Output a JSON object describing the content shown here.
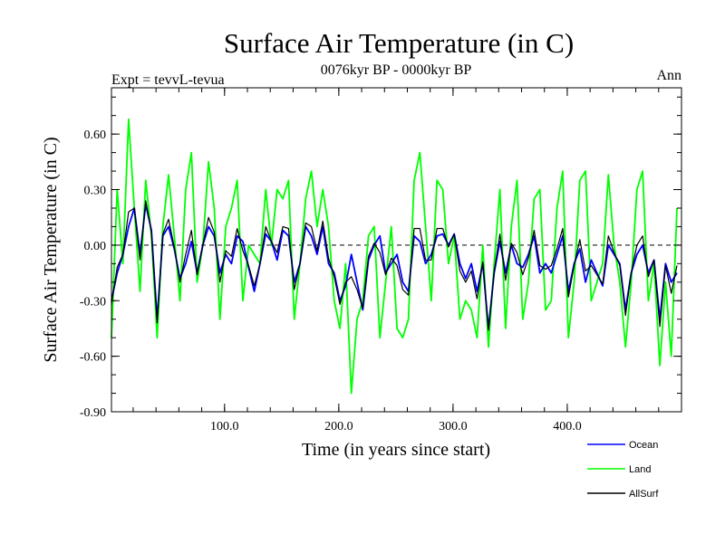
{
  "chart_data": {
    "type": "line",
    "title": "Surface Air Temperature (in C)",
    "subtitle": "0076kyr BP - 0000kyr BP",
    "left_label": "Expt = tevvL-tevua",
    "right_label": "Ann",
    "xlabel": "Time (in years since start)",
    "ylabel": "Surface Air Temperature (in C)",
    "xlim": [
      1,
      500
    ],
    "ylim": [
      -0.9,
      0.85
    ],
    "x_ticks": [
      100,
      200,
      300,
      400
    ],
    "x_tick_labels": [
      "100.0",
      "200.0",
      "300.0",
      "400.0"
    ],
    "y_ticks": [
      -0.9,
      -0.6,
      -0.3,
      0.0,
      0.3,
      0.6
    ],
    "y_tick_labels": [
      "-0.90",
      "-0.60",
      "-0.30",
      "0.00",
      "0.30",
      "0.60"
    ],
    "zero_line": true,
    "legend_position": "bottom-right",
    "series": [
      {
        "name": "Ocean",
        "color": "#0000ff",
        "x_start": 1,
        "x_step": 5,
        "values": [
          -0.3,
          -0.15,
          -0.05,
          0.1,
          0.2,
          -0.05,
          0.22,
          0.08,
          -0.4,
          0.05,
          0.1,
          -0.02,
          -0.18,
          -0.1,
          0.02,
          -0.15,
          0.0,
          0.1,
          0.05,
          -0.15,
          -0.05,
          -0.1,
          0.05,
          0.02,
          -0.12,
          -0.25,
          -0.1,
          0.06,
          0.02,
          -0.08,
          0.08,
          0.05,
          -0.2,
          -0.1,
          0.1,
          0.05,
          -0.05,
          0.1,
          -0.1,
          -0.15,
          -0.3,
          -0.22,
          -0.05,
          -0.2,
          -0.35,
          -0.08,
          0.0,
          0.05,
          -0.15,
          -0.1,
          -0.05,
          -0.2,
          -0.25,
          0.05,
          0.02,
          -0.1,
          -0.05,
          0.05,
          0.06,
          0.0,
          0.06,
          -0.1,
          -0.18,
          -0.1,
          -0.25,
          -0.1,
          -0.45,
          -0.15,
          0.02,
          -0.15,
          0.0,
          -0.1,
          -0.12,
          -0.05,
          0.05,
          -0.15,
          -0.1,
          -0.15,
          -0.05,
          0.05,
          -0.25,
          -0.1,
          -0.02,
          -0.2,
          -0.08,
          -0.15,
          -0.22,
          0.0,
          -0.05,
          -0.1,
          -0.35,
          -0.15,
          -0.05,
          0.0,
          -0.15,
          -0.08,
          -0.4,
          -0.1,
          -0.2,
          -0.15
        ]
      },
      {
        "name": "Land",
        "color": "#00ff00",
        "x_start": 1,
        "x_step": 5,
        "values": [
          -0.5,
          0.3,
          -0.1,
          0.68,
          0.2,
          -0.25,
          0.35,
          0.05,
          -0.5,
          0.1,
          0.38,
          0.05,
          -0.3,
          0.3,
          0.5,
          -0.2,
          0.0,
          0.45,
          0.2,
          -0.4,
          0.1,
          0.2,
          0.35,
          -0.3,
          0.0,
          -0.05,
          -0.1,
          0.3,
          0.0,
          0.3,
          0.25,
          0.35,
          -0.4,
          -0.1,
          0.25,
          0.4,
          0.1,
          0.3,
          0.1,
          -0.3,
          -0.45,
          -0.1,
          -0.8,
          -0.4,
          -0.3,
          0.05,
          0.1,
          -0.5,
          -0.2,
          0.1,
          -0.45,
          -0.5,
          -0.4,
          0.35,
          0.5,
          0.1,
          -0.3,
          0.35,
          0.3,
          -0.1,
          0.05,
          -0.4,
          -0.3,
          -0.35,
          -0.5,
          0.0,
          -0.55,
          -0.1,
          0.3,
          -0.45,
          0.1,
          0.35,
          -0.4,
          -0.2,
          0.25,
          0.3,
          -0.35,
          -0.3,
          0.2,
          0.4,
          -0.5,
          -0.2,
          0.35,
          0.4,
          -0.3,
          -0.2,
          -0.1,
          0.38,
          0.0,
          -0.2,
          -0.55,
          -0.2,
          0.3,
          0.4,
          -0.3,
          -0.1,
          -0.65,
          -0.2,
          -0.6,
          0.2
        ]
      },
      {
        "name": "AllSurf",
        "color": "#000000",
        "x_start": 1,
        "x_step": 5,
        "values": [
          -0.32,
          -0.12,
          -0.05,
          0.18,
          0.2,
          -0.08,
          0.24,
          0.07,
          -0.42,
          0.06,
          0.14,
          -0.01,
          -0.2,
          -0.05,
          0.08,
          -0.16,
          0.0,
          0.15,
          0.07,
          -0.2,
          -0.03,
          -0.06,
          0.09,
          -0.03,
          -0.11,
          -0.22,
          -0.1,
          0.1,
          0.02,
          -0.04,
          0.1,
          0.09,
          -0.24,
          -0.1,
          0.12,
          0.1,
          -0.03,
          0.13,
          -0.07,
          -0.17,
          -0.32,
          -0.2,
          -0.17,
          -0.24,
          -0.34,
          -0.06,
          0.01,
          -0.04,
          -0.16,
          -0.07,
          -0.11,
          -0.24,
          -0.27,
          0.09,
          0.09,
          -0.08,
          -0.08,
          0.09,
          0.09,
          -0.01,
          0.06,
          -0.14,
          -0.2,
          -0.14,
          -0.29,
          -0.09,
          -0.46,
          -0.14,
          0.06,
          -0.19,
          0.01,
          -0.04,
          -0.16,
          -0.07,
          0.08,
          -0.11,
          -0.13,
          -0.11,
          -0.02,
          0.09,
          -0.28,
          -0.11,
          0.03,
          -0.14,
          -0.11,
          -0.16,
          -0.21,
          0.05,
          -0.04,
          -0.11,
          -0.38,
          -0.15,
          0.0,
          0.05,
          -0.17,
          -0.08,
          -0.44,
          -0.11,
          -0.26,
          -0.11
        ]
      }
    ]
  }
}
